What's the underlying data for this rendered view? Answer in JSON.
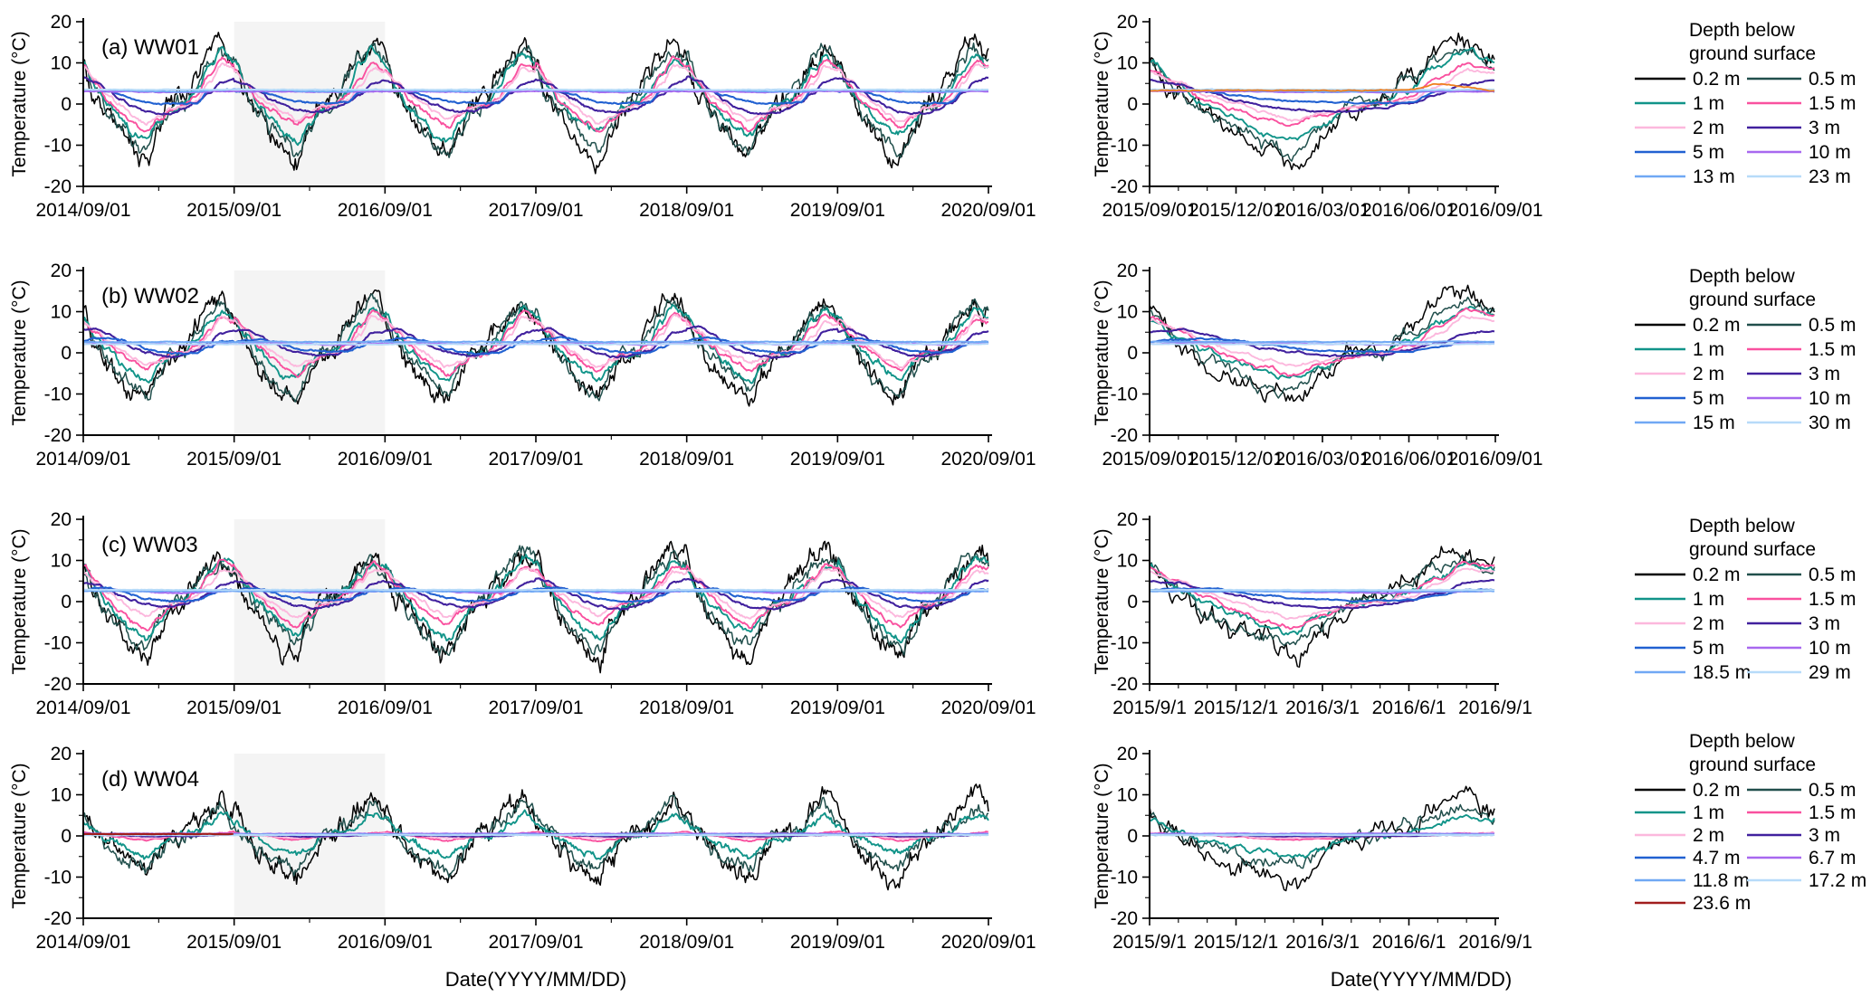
{
  "figure": {
    "background": "#ffffff",
    "axis_color": "#000000",
    "highlight_band_color": "#f4f4f4",
    "y_axis_title": "Temperature (°C)",
    "x_axis_title": "Date(YYYY/MM/DD)",
    "ylim": [
      -20,
      20
    ],
    "yticks": [
      20,
      10,
      0,
      -10,
      -20
    ]
  },
  "chart_data": [
    {
      "id": "a",
      "type": "line",
      "label": "(a) WW01",
      "legend_title": [
        "Depth below",
        "ground surface"
      ],
      "left_xticks": [
        "2014/09/01",
        "2015/09/01",
        "2016/09/01",
        "2017/09/01",
        "2018/09/01",
        "2019/09/01",
        "2020/09/01"
      ],
      "right_xticks": [
        "2015/09/01",
        "2015/12/01",
        "2016/03/01",
        "2016/06/01",
        "2016/09/01"
      ],
      "highlight_band": [
        "2015/09/01",
        "2016/09/01"
      ],
      "series": [
        {
          "name": "0.2 m",
          "color": "#000000",
          "noise": 1.5,
          "width": 1.5,
          "monthly": [
            10.5,
            2,
            -3,
            -7,
            -11.5,
            -13.5,
            -6,
            -0.5,
            1.5,
            7,
            12,
            14.5
          ]
        },
        {
          "name": "0.5 m",
          "color": "#214f4c",
          "noise": 1.0,
          "width": 1.5,
          "monthly": [
            10,
            3,
            -2,
            -6,
            -9.5,
            -11.5,
            -5.5,
            -0.5,
            0.5,
            5.5,
            10.5,
            13.5
          ]
        },
        {
          "name": "1 m",
          "color": "#119489",
          "noise": 0.5,
          "width": 1.9,
          "monthly": [
            9.5,
            4,
            -0.5,
            -3.5,
            -6.5,
            -8,
            -4.5,
            -1,
            0,
            3.5,
            8.5,
            12
          ]
        },
        {
          "name": "1.5 m",
          "color": "#f9519f",
          "noise": 0.3,
          "width": 1.9,
          "monthly": [
            9,
            5,
            0.5,
            -1.5,
            -4,
            -6,
            -3.5,
            -1,
            -0.2,
            2,
            6.5,
            10.5
          ]
        },
        {
          "name": "2 m",
          "color": "#fcb8dd",
          "noise": 0.25,
          "width": 1.9,
          "monthly": [
            8.5,
            5.5,
            2,
            0,
            -2.5,
            -4.5,
            -2.8,
            -1,
            -0.3,
            1,
            5,
            9
          ]
        },
        {
          "name": "3 m",
          "color": "#41219e",
          "noise": 0.15,
          "width": 2.1,
          "monthly": [
            6,
            5,
            3,
            1,
            -0.5,
            -1.5,
            -2,
            -2,
            -1,
            0.3,
            2.5,
            5
          ]
        },
        {
          "name": "5 m",
          "color": "#2161d1",
          "noise": 0.12,
          "width": 2.1,
          "monthly": [
            3.3,
            3.3,
            3.1,
            2.2,
            1.2,
            0.6,
            0.3,
            0.2,
            0.2,
            0.4,
            3.2,
            3.4
          ]
        },
        {
          "name": "10 m",
          "color": "#a868ef",
          "noise": 0.06,
          "width": 2.0,
          "monthly": [
            3.1,
            3.1,
            3.1,
            3.05,
            3.0,
            2.95,
            2.9,
            2.9,
            2.9,
            2.95,
            3.05,
            3.1
          ]
        },
        {
          "name": "13 m",
          "color": "#70a8f4",
          "noise": 0.06,
          "width": 2.0,
          "monthly": [
            3.45,
            3.45,
            3.4,
            3.35,
            3.25,
            3.15,
            3.05,
            3.0,
            3.0,
            3.05,
            3.35,
            3.45
          ]
        },
        {
          "name": "23 m",
          "color": "#b7dbf9",
          "noise": 0.04,
          "width": 2.0,
          "monthly": [
            3.5,
            3.5,
            3.5,
            3.5,
            3.5,
            3.5,
            3.5,
            3.5,
            3.5,
            3.5,
            3.5,
            3.5
          ]
        }
      ],
      "extra_series": [
        {
          "name": "unlabeled orange line",
          "in_legend": false,
          "color": "#ef7f1f",
          "noise": 0.08,
          "width": 1.8,
          "left": false,
          "right": true,
          "monthly": [
            3.3,
            3.3,
            3.3,
            3.3,
            3.3,
            3.3,
            3.3,
            3.3,
            3.3,
            3.4,
            5.0,
            4.2
          ]
        }
      ]
    },
    {
      "id": "b",
      "type": "line",
      "label": "(b) WW02",
      "legend_title": [
        "Depth below",
        "ground surface"
      ],
      "left_xticks": [
        "2014/09/01",
        "2015/09/01",
        "2016/09/01",
        "2017/09/01",
        "2018/09/01",
        "2019/09/01",
        "2020/09/01"
      ],
      "right_xticks": [
        "2015/09/01",
        "2015/12/01",
        "2016/03/01",
        "2016/06/01",
        "2016/09/01"
      ],
      "highlight_band": [
        "2015/09/01",
        "2016/09/01"
      ],
      "series": [
        {
          "name": "0.2 m",
          "color": "#000000",
          "noise": 1.4,
          "width": 1.5,
          "monthly": [
            9.5,
            2,
            -2.5,
            -6,
            -9,
            -11,
            -5,
            0,
            1,
            6,
            10.5,
            12.5
          ]
        },
        {
          "name": "0.5 m",
          "color": "#214f4c",
          "noise": 0.9,
          "width": 1.5,
          "monthly": [
            9,
            3,
            -1.5,
            -5,
            -7.5,
            -9.5,
            -4,
            0,
            0.5,
            5,
            9.5,
            11.5
          ]
        },
        {
          "name": "1 m",
          "color": "#119489",
          "noise": 0.5,
          "width": 1.9,
          "monthly": [
            8.5,
            4,
            0.5,
            -2.5,
            -5,
            -6.5,
            -3,
            -0.5,
            0,
            3,
            7.5,
            10.5
          ]
        },
        {
          "name": "1.5 m",
          "color": "#f9519f",
          "noise": 0.3,
          "width": 1.9,
          "monthly": [
            8,
            5,
            1.5,
            -1,
            -3,
            -4.5,
            -2.2,
            -0.5,
            0,
            2,
            6,
            9.5
          ]
        },
        {
          "name": "2 m",
          "color": "#fcb8dd",
          "noise": 0.25,
          "width": 1.9,
          "monthly": [
            7.5,
            5.5,
            2.5,
            0.5,
            -1.5,
            -3,
            -1.8,
            -0.5,
            0,
            1,
            4.5,
            8.5
          ]
        },
        {
          "name": "3 m",
          "color": "#41219e",
          "noise": 0.15,
          "width": 2.1,
          "monthly": [
            5.5,
            6,
            4.5,
            2.5,
            1,
            0,
            -0.8,
            -1,
            -0.5,
            0.5,
            2.5,
            5
          ]
        },
        {
          "name": "5 m",
          "color": "#2161d1",
          "noise": 0.12,
          "width": 2.1,
          "monthly": [
            2.7,
            3.3,
            3.5,
            3.0,
            2.0,
            1.0,
            0.5,
            0.2,
            0.1,
            0.3,
            1.5,
            2.6
          ]
        },
        {
          "name": "10 m",
          "color": "#a868ef",
          "noise": 0.06,
          "width": 2.0,
          "monthly": [
            2.2,
            2.3,
            2.4,
            2.45,
            2.4,
            2.3,
            2.2,
            2.1,
            2.0,
            2.0,
            2.1,
            2.2
          ]
        },
        {
          "name": "15 m",
          "color": "#70a8f4",
          "noise": 0.05,
          "width": 2.0,
          "monthly": [
            2.65,
            2.65,
            2.65,
            2.65,
            2.65,
            2.65,
            2.65,
            2.65,
            2.65,
            2.65,
            2.65,
            2.65
          ]
        },
        {
          "name": "30 m",
          "color": "#b7dbf9",
          "noise": 0.04,
          "width": 2.0,
          "monthly": [
            2.1,
            2.1,
            2.1,
            2.1,
            2.1,
            2.1,
            2.1,
            2.1,
            2.1,
            2.1,
            2.1,
            2.1
          ]
        }
      ],
      "extra_series": []
    },
    {
      "id": "c",
      "type": "line",
      "label": "(c) WW03",
      "legend_title": [
        "Depth below",
        "ground surface"
      ],
      "left_xticks": [
        "2014/09/01",
        "2015/09/01",
        "2016/09/01",
        "2017/09/01",
        "2018/09/01",
        "2019/09/01",
        "2020/09/01"
      ],
      "right_xticks": [
        "2015/9/1",
        "2015/12/1",
        "2016/3/1",
        "2016/6/1",
        "2016/9/1"
      ],
      "highlight_band": [
        "2015/09/01",
        "2016/09/01"
      ],
      "series": [
        {
          "name": "0.2 m",
          "color": "#000000",
          "noise": 1.6,
          "width": 1.5,
          "monthly": [
            10,
            1.5,
            -4,
            -8,
            -12,
            -14.5,
            -7,
            -1,
            1,
            6,
            10,
            12
          ]
        },
        {
          "name": "0.5 m",
          "color": "#214f4c",
          "noise": 1.0,
          "width": 1.5,
          "monthly": [
            9.5,
            2.5,
            -3,
            -7,
            -10,
            -12,
            -6,
            -0.5,
            0.5,
            5,
            9,
            11
          ]
        },
        {
          "name": "1 m",
          "color": "#119489",
          "noise": 0.5,
          "width": 1.9,
          "monthly": [
            9,
            3.5,
            -0.5,
            -4,
            -7,
            -8.5,
            -4.5,
            -1,
            0,
            3,
            7,
            10
          ]
        },
        {
          "name": "1.5 m",
          "color": "#f9519f",
          "noise": 0.3,
          "width": 1.9,
          "monthly": [
            8,
            4.5,
            1,
            -2,
            -4.5,
            -6,
            -3.2,
            -0.8,
            -0.1,
            2,
            5.5,
            9
          ]
        },
        {
          "name": "2 m",
          "color": "#fcb8dd",
          "noise": 0.25,
          "width": 1.9,
          "monthly": [
            7.5,
            5,
            2,
            0,
            -2.5,
            -4,
            -2.2,
            -0.6,
            0,
            1,
            4.5,
            8
          ]
        },
        {
          "name": "3 m",
          "color": "#41219e",
          "noise": 0.15,
          "width": 2.1,
          "monthly": [
            5,
            4.5,
            3,
            1.5,
            0,
            -1,
            -1.5,
            -1.5,
            -0.8,
            0.2,
            2,
            4.5
          ]
        },
        {
          "name": "5 m",
          "color": "#2161d1",
          "noise": 0.12,
          "width": 2.1,
          "monthly": [
            2.8,
            3.2,
            3.2,
            2.5,
            1.5,
            0.8,
            0.4,
            0.2,
            0.2,
            0.4,
            1.5,
            2.8
          ]
        },
        {
          "name": "10 m",
          "color": "#a868ef",
          "noise": 0.06,
          "width": 2.0,
          "monthly": [
            2.6,
            2.7,
            2.8,
            2.75,
            2.6,
            2.4,
            2.25,
            2.15,
            2.1,
            2.2,
            2.4,
            2.5
          ]
        },
        {
          "name": "18.5 m",
          "color": "#70a8f4",
          "noise": 0.05,
          "width": 2.0,
          "monthly": [
            2.5,
            2.5,
            2.5,
            2.5,
            2.5,
            2.5,
            2.5,
            2.5,
            2.5,
            2.5,
            2.5,
            2.5
          ]
        },
        {
          "name": "29 m",
          "color": "#b7dbf9",
          "noise": 0.04,
          "width": 2.0,
          "monthly": [
            2.85,
            2.85,
            2.85,
            2.85,
            2.85,
            2.85,
            2.85,
            2.85,
            2.85,
            2.85,
            2.85,
            2.85
          ]
        }
      ],
      "extra_series": []
    },
    {
      "id": "d",
      "type": "line",
      "label": "(d) WW04",
      "legend_title": [
        "Depth below",
        "ground surface"
      ],
      "left_xticks": [
        "2014/09/01",
        "2015/09/01",
        "2016/09/01",
        "2017/09/01",
        "2018/09/01",
        "2019/09/01",
        "2020/09/01"
      ],
      "right_xticks": [
        "2015/9/1",
        "2015/12/1",
        "2016/3/1",
        "2016/6/1",
        "2016/9/1"
      ],
      "highlight_band": [
        "2015/09/01",
        "2016/09/01"
      ],
      "series": [
        {
          "name": "0.2 m",
          "color": "#000000",
          "noise": 1.5,
          "width": 1.5,
          "monthly": [
            6,
            0.5,
            -3.5,
            -6.5,
            -8.5,
            -10,
            -5,
            -0.5,
            0.5,
            3,
            7,
            10.5
          ]
        },
        {
          "name": "0.5 m",
          "color": "#214f4c",
          "noise": 1.0,
          "width": 1.5,
          "monthly": [
            4.5,
            0.5,
            -2.5,
            -5,
            -6.5,
            -8,
            -4,
            -0.5,
            0.2,
            2,
            5,
            8
          ]
        },
        {
          "name": "1 m",
          "color": "#119489",
          "noise": 0.5,
          "width": 1.9,
          "monthly": [
            3.5,
            1,
            -1,
            -2.5,
            -4,
            -5,
            -2.8,
            -0.5,
            0,
            1,
            3,
            5.5
          ]
        },
        {
          "name": "1.5 m",
          "color": "#f9519f",
          "noise": 0.1,
          "width": 1.9,
          "monthly": [
            0.9,
            0.4,
            0.1,
            -0.3,
            -0.8,
            -1.1,
            -0.7,
            -0.2,
            0,
            0.1,
            0.3,
            0.7
          ]
        },
        {
          "name": "2 m",
          "color": "#fcb8dd",
          "noise": 0.08,
          "width": 1.9,
          "monthly": [
            0.6,
            0.3,
            0.1,
            0,
            -0.3,
            -0.5,
            -0.4,
            -0.1,
            0,
            0,
            0.2,
            0.4
          ]
        },
        {
          "name": "3 m",
          "color": "#41219e",
          "noise": 0.05,
          "width": 2.0,
          "monthly": [
            0.35,
            0.3,
            0.2,
            0.1,
            0,
            -0.1,
            -0.15,
            -0.1,
            0,
            0,
            0.1,
            0.25
          ]
        },
        {
          "name": "4.7 m",
          "color": "#2161d1",
          "noise": 0.04,
          "width": 2.0,
          "monthly": [
            0.25,
            0.25,
            0.25,
            0.25,
            0.25,
            0.25,
            0.25,
            0.25,
            0.25,
            0.25,
            0.25,
            0.25
          ]
        },
        {
          "name": "6.7 m",
          "color": "#a868ef",
          "noise": 0.04,
          "width": 2.0,
          "monthly": [
            0.55,
            0.55,
            0.55,
            0.55,
            0.55,
            0.55,
            0.55,
            0.55,
            0.55,
            0.55,
            0.55,
            0.55
          ]
        },
        {
          "name": "11.8 m",
          "color": "#70a8f4",
          "noise": 0.03,
          "width": 2.0,
          "monthly": [
            0.35,
            0.35,
            0.35,
            0.35,
            0.35,
            0.35,
            0.35,
            0.35,
            0.35,
            0.35,
            0.35,
            0.35
          ]
        },
        {
          "name": "17.2 m",
          "color": "#b7dbf9",
          "noise": 0.03,
          "width": 2.0,
          "monthly": [
            0.2,
            0.2,
            0.2,
            0.2,
            0.2,
            0.2,
            0.2,
            0.2,
            0.2,
            0.2,
            0.2,
            0.2
          ]
        },
        {
          "name": "23.6 m",
          "color": "#a11d1d",
          "noise": 0.03,
          "width": 2.2,
          "left_frac": [
            0,
            0.167
          ],
          "right": false,
          "monthly": [
            0.45,
            0.45,
            0.45,
            0.45,
            0.45,
            0.45,
            0.45,
            0.45,
            0.45,
            0.45,
            0.45,
            0.45
          ]
        }
      ],
      "extra_series": []
    }
  ]
}
